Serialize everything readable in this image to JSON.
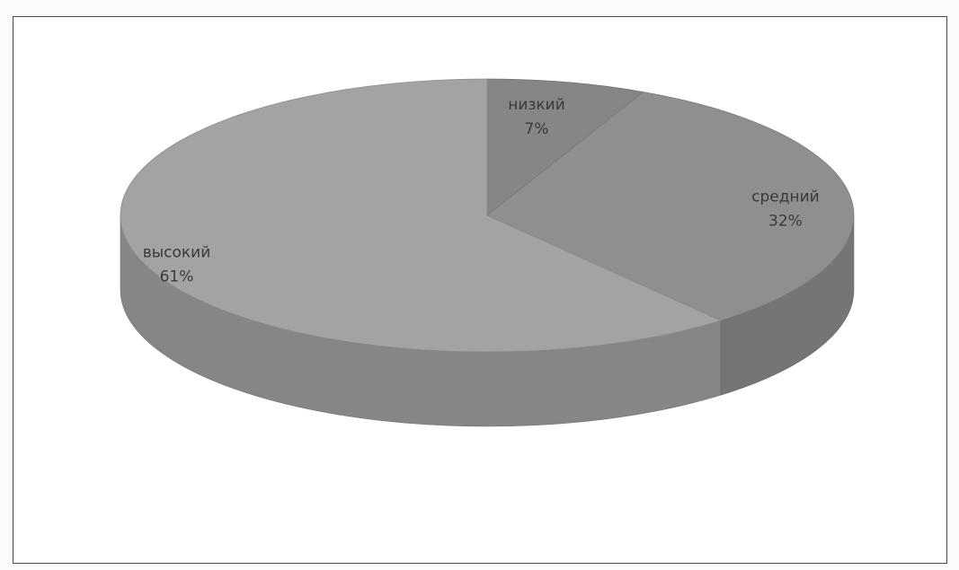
{
  "chart_data": {
    "type": "pie",
    "style": "3d",
    "title": "",
    "legend": "none",
    "slices": [
      {
        "name": "низкий",
        "value": 7,
        "label_value": "7%",
        "color": "#868686"
      },
      {
        "name": "средний",
        "value": 32,
        "label_value": "32%",
        "color": "#8f8f8f"
      },
      {
        "name": "высокий",
        "value": 61,
        "label_value": "61%",
        "color": "#a3a3a3"
      }
    ]
  }
}
